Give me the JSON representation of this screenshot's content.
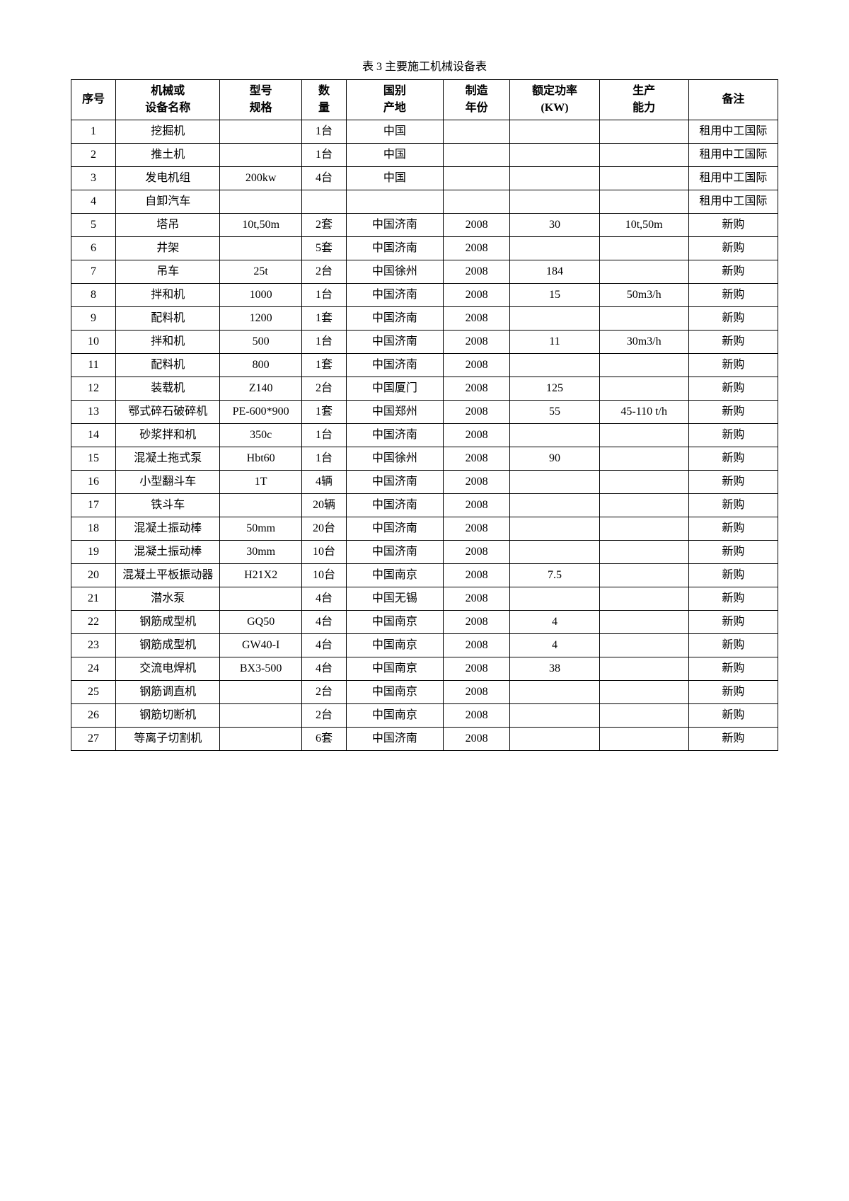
{
  "table": {
    "title": "表 3  主要施工机械设备表",
    "columns": [
      {
        "h1": "序号",
        "h2": ""
      },
      {
        "h1": "机械或",
        "h2": "设备名称"
      },
      {
        "h1": "型号",
        "h2": "规格"
      },
      {
        "h1": "数",
        "h2": "量"
      },
      {
        "h1": "国别",
        "h2": "产地"
      },
      {
        "h1": "制造",
        "h2": "年份"
      },
      {
        "h1": "额定功率",
        "h2": "(KW)"
      },
      {
        "h1": "生产",
        "h2": "能力"
      },
      {
        "h1": "备注",
        "h2": ""
      }
    ],
    "rows": [
      {
        "seq": "1",
        "name": "挖掘机",
        "model": "",
        "qty": "1台",
        "origin": "中国",
        "year": "",
        "power": "",
        "cap": "",
        "note": "租用中工国际"
      },
      {
        "seq": "2",
        "name": "推土机",
        "model": "",
        "qty": "1台",
        "origin": "中国",
        "year": "",
        "power": "",
        "cap": "",
        "note": "租用中工国际"
      },
      {
        "seq": "3",
        "name": "发电机组",
        "model": "200kw",
        "qty": "4台",
        "origin": "中国",
        "year": "",
        "power": "",
        "cap": "",
        "note": "租用中工国际"
      },
      {
        "seq": "4",
        "name": "自卸汽车",
        "model": "",
        "qty": "",
        "origin": "",
        "year": "",
        "power": "",
        "cap": "",
        "note": "租用中工国际"
      },
      {
        "seq": "5",
        "name": "塔吊",
        "model": "10t,50m",
        "qty": "2套",
        "origin": "中国济南",
        "year": "2008",
        "power": "30",
        "cap": "10t,50m",
        "note": "新购"
      },
      {
        "seq": "6",
        "name": "井架",
        "model": "",
        "qty": "5套",
        "origin": "中国济南",
        "year": "2008",
        "power": "",
        "cap": "",
        "note": "新购"
      },
      {
        "seq": "7",
        "name": "吊车",
        "model": "25t",
        "qty": "2台",
        "origin": "中国徐州",
        "year": "2008",
        "power": "184",
        "cap": "",
        "note": "新购"
      },
      {
        "seq": "8",
        "name": "拌和机",
        "model": "1000",
        "qty": "1台",
        "origin": "中国济南",
        "year": "2008",
        "power": "15",
        "cap": "50m3/h",
        "note": "新购"
      },
      {
        "seq": "9",
        "name": "配料机",
        "model": "1200",
        "qty": "1套",
        "origin": "中国济南",
        "year": "2008",
        "power": "",
        "cap": "",
        "note": "新购"
      },
      {
        "seq": "10",
        "name": "拌和机",
        "model": "500",
        "qty": "1台",
        "origin": "中国济南",
        "year": "2008",
        "power": "11",
        "cap": "30m3/h",
        "note": "新购"
      },
      {
        "seq": "11",
        "name": "配料机",
        "model": "800",
        "qty": "1套",
        "origin": "中国济南",
        "year": "2008",
        "power": "",
        "cap": "",
        "note": "新购"
      },
      {
        "seq": "12",
        "name": "装载机",
        "model": "Z140",
        "qty": "2台",
        "origin": "中国厦门",
        "year": "2008",
        "power": "125",
        "cap": "",
        "note": "新购"
      },
      {
        "seq": "13",
        "name": "鄂式碎石破碎机",
        "model": "PE-600*900",
        "qty": "1套",
        "origin": "中国郑州",
        "year": "2008",
        "power": "55",
        "cap": "45-110 t/h",
        "note": "新购"
      },
      {
        "seq": "14",
        "name": "砂浆拌和机",
        "model": "350c",
        "qty": "1台",
        "origin": "中国济南",
        "year": "2008",
        "power": "",
        "cap": "",
        "note": "新购"
      },
      {
        "seq": "15",
        "name": "混凝土拖式泵",
        "model": "Hbt60",
        "qty": "1台",
        "origin": "中国徐州",
        "year": "2008",
        "power": "90",
        "cap": "",
        "note": "新购"
      },
      {
        "seq": "16",
        "name": "小型翻斗车",
        "model": "1T",
        "qty": "4辆",
        "origin": "中国济南",
        "year": "2008",
        "power": "",
        "cap": "",
        "note": "新购"
      },
      {
        "seq": "17",
        "name": "铁斗车",
        "model": "",
        "qty": "20辆",
        "origin": "中国济南",
        "year": "2008",
        "power": "",
        "cap": "",
        "note": "新购"
      },
      {
        "seq": "18",
        "name": "混凝土振动棒",
        "model": "50mm",
        "qty": "20台",
        "origin": "中国济南",
        "year": "2008",
        "power": "",
        "cap": "",
        "note": "新购"
      },
      {
        "seq": "19",
        "name": "混凝土振动棒",
        "model": "30mm",
        "qty": "10台",
        "origin": "中国济南",
        "year": "2008",
        "power": "",
        "cap": "",
        "note": "新购"
      },
      {
        "seq": "20",
        "name": "混凝土平板振动器",
        "model": "H21X2",
        "qty": "10台",
        "origin": "中国南京",
        "year": "2008",
        "power": "7.5",
        "cap": "",
        "note": "新购"
      },
      {
        "seq": "21",
        "name": "潜水泵",
        "model": "",
        "qty": "4台",
        "origin": "中国无锡",
        "year": "2008",
        "power": "",
        "cap": "",
        "note": "新购"
      },
      {
        "seq": "22",
        "name": "钢筋成型机",
        "model": "GQ50",
        "qty": "4台",
        "origin": "中国南京",
        "year": "2008",
        "power": "4",
        "cap": "",
        "note": "新购"
      },
      {
        "seq": "23",
        "name": "钢筋成型机",
        "model": "GW40-I",
        "qty": "4台",
        "origin": "中国南京",
        "year": "2008",
        "power": "4",
        "cap": "",
        "note": "新购"
      },
      {
        "seq": "24",
        "name": "交流电焊机",
        "model": "BX3-500",
        "qty": "4台",
        "origin": "中国南京",
        "year": "2008",
        "power": "38",
        "cap": "",
        "note": "新购"
      },
      {
        "seq": "25",
        "name": "钢筋调直机",
        "model": "",
        "qty": "2台",
        "origin": "中国南京",
        "year": "2008",
        "power": "",
        "cap": "",
        "note": "新购"
      },
      {
        "seq": "26",
        "name": "钢筋切断机",
        "model": "",
        "qty": "2台",
        "origin": "中国南京",
        "year": "2008",
        "power": "",
        "cap": "",
        "note": "新购"
      },
      {
        "seq": "27",
        "name": "等离子切割机",
        "model": "",
        "qty": "6套",
        "origin": "中国济南",
        "year": "2008",
        "power": "",
        "cap": "",
        "note": "新购"
      }
    ]
  }
}
